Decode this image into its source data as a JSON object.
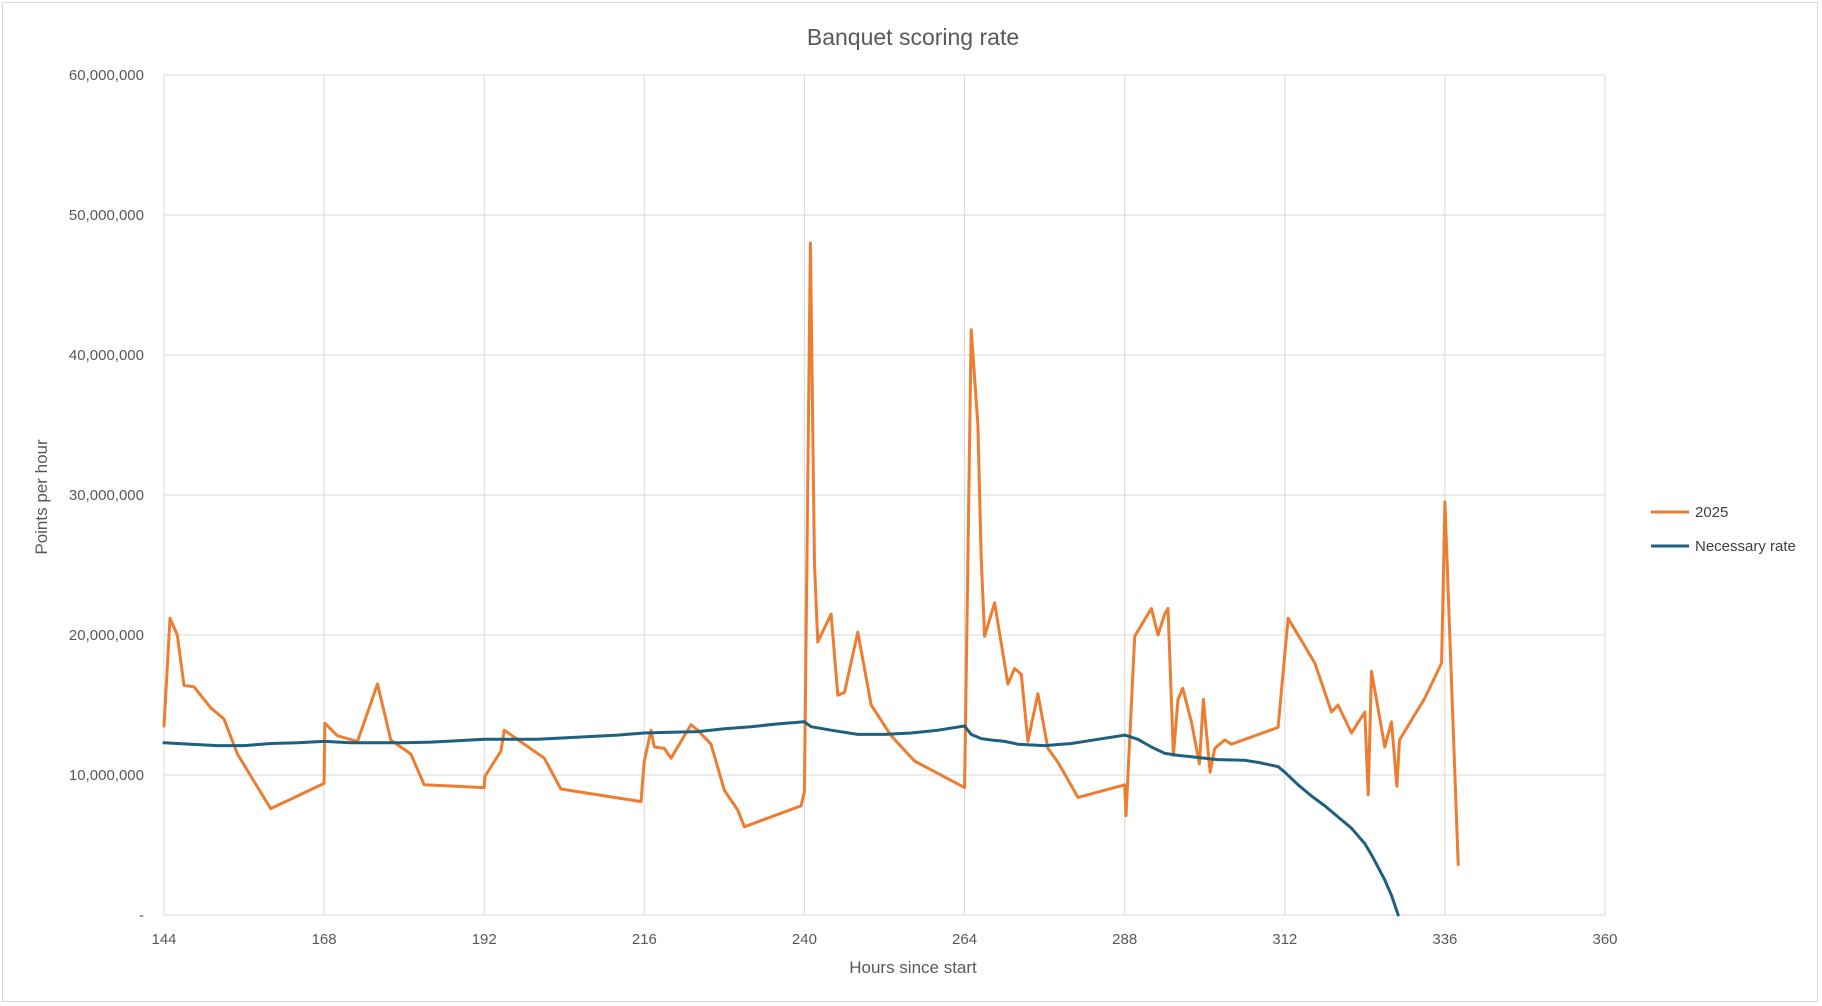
{
  "chart_data": {
    "type": "line",
    "title": "Banquet scoring rate",
    "xlabel": "Hours since start",
    "ylabel": "Points per hour",
    "xlim": [
      144,
      360
    ],
    "ylim": [
      0,
      60000000
    ],
    "x_ticks": [
      144,
      168,
      192,
      216,
      240,
      264,
      288,
      312,
      336,
      360
    ],
    "x_tick_labels": [
      "144",
      "168",
      "192",
      "216",
      "240",
      "264",
      "288",
      "312",
      "336",
      "360"
    ],
    "y_ticks": [
      0,
      10000000,
      20000000,
      30000000,
      40000000,
      50000000,
      60000000
    ],
    "y_tick_labels": [
      "-",
      "10,000,000",
      "20,000,000",
      "30,000,000",
      "40,000,000",
      "50,000,000",
      "60,000,000"
    ],
    "grid": true,
    "legend_position": "right",
    "series": [
      {
        "name": "2025",
        "color": "#ED7D31",
        "points": [
          [
            144.0,
            13500000
          ],
          [
            144.9,
            21200000
          ],
          [
            146.0,
            20000000
          ],
          [
            147.0,
            16400000
          ],
          [
            148.5,
            16300000
          ],
          [
            151.0,
            14800000
          ],
          [
            153.0,
            14000000
          ],
          [
            155.0,
            11500000
          ],
          [
            160.0,
            7600000
          ],
          [
            168.0,
            9400000
          ],
          [
            168.1,
            13700000
          ],
          [
            170.0,
            12800000
          ],
          [
            173.0,
            12400000
          ],
          [
            176.0,
            16500000
          ],
          [
            177.5,
            13500000
          ],
          [
            178.0,
            12500000
          ],
          [
            181.0,
            11500000
          ],
          [
            183.0,
            9300000
          ],
          [
            192.0,
            9100000
          ],
          [
            192.1,
            9900000
          ],
          [
            194.5,
            11700000
          ],
          [
            195.0,
            13200000
          ],
          [
            201.0,
            11200000
          ],
          [
            203.5,
            9000000
          ],
          [
            215.5,
            8100000
          ],
          [
            216.0,
            11000000
          ],
          [
            217.0,
            13200000
          ],
          [
            217.5,
            12000000
          ],
          [
            219.0,
            11900000
          ],
          [
            220.0,
            11200000
          ],
          [
            223.0,
            13600000
          ],
          [
            224.0,
            13200000
          ],
          [
            226.0,
            12200000
          ],
          [
            228.0,
            8900000
          ],
          [
            230.0,
            7500000
          ],
          [
            231.0,
            6300000
          ],
          [
            239.5,
            7800000
          ],
          [
            240.0,
            8800000
          ],
          [
            240.9,
            48000000
          ],
          [
            241.5,
            25000000
          ],
          [
            242.0,
            19500000
          ],
          [
            244.0,
            21500000
          ],
          [
            245.0,
            15700000
          ],
          [
            246.0,
            15900000
          ],
          [
            248.0,
            20200000
          ],
          [
            250.0,
            15000000
          ],
          [
            253.0,
            12800000
          ],
          [
            256.5,
            11000000
          ],
          [
            264.0,
            9100000
          ],
          [
            265.0,
            41800000
          ],
          [
            266.0,
            35000000
          ],
          [
            266.5,
            25500000
          ],
          [
            267.0,
            19900000
          ],
          [
            268.5,
            22300000
          ],
          [
            270.5,
            16500000
          ],
          [
            271.5,
            17600000
          ],
          [
            272.5,
            17200000
          ],
          [
            273.5,
            12400000
          ],
          [
            275.0,
            15800000
          ],
          [
            276.5,
            11900000
          ],
          [
            278.0,
            10900000
          ],
          [
            281.0,
            8400000
          ],
          [
            288.0,
            9300000
          ],
          [
            288.2,
            7100000
          ],
          [
            289.5,
            19900000
          ],
          [
            292.0,
            21900000
          ],
          [
            293.0,
            20000000
          ],
          [
            294.0,
            21500000
          ],
          [
            294.5,
            21900000
          ],
          [
            295.3,
            11400000
          ],
          [
            296.0,
            15400000
          ],
          [
            296.7,
            16200000
          ],
          [
            298.0,
            13800000
          ],
          [
            299.2,
            10800000
          ],
          [
            299.8,
            15400000
          ],
          [
            300.8,
            10200000
          ],
          [
            301.5,
            11900000
          ],
          [
            303.0,
            12500000
          ],
          [
            304.0,
            12200000
          ],
          [
            311.0,
            13400000
          ],
          [
            312.5,
            21200000
          ],
          [
            316.5,
            18000000
          ],
          [
            319.0,
            14500000
          ],
          [
            320.0,
            15000000
          ],
          [
            322.0,
            13000000
          ],
          [
            324.0,
            14500000
          ],
          [
            324.5,
            8600000
          ],
          [
            325.0,
            17400000
          ],
          [
            327.0,
            12000000
          ],
          [
            328.0,
            13800000
          ],
          [
            328.8,
            9200000
          ],
          [
            329.2,
            12500000
          ],
          [
            333.0,
            15500000
          ],
          [
            335.5,
            18000000
          ],
          [
            336.0,
            29500000
          ],
          [
            338.0,
            3600000
          ]
        ]
      },
      {
        "name": "Necessary rate",
        "color": "#1F5F7F",
        "points": [
          [
            144.0,
            12300000
          ],
          [
            148.0,
            12200000
          ],
          [
            152.0,
            12100000
          ],
          [
            156.0,
            12100000
          ],
          [
            160.0,
            12250000
          ],
          [
            164.0,
            12300000
          ],
          [
            168.0,
            12400000
          ],
          [
            172.0,
            12300000
          ],
          [
            176.0,
            12300000
          ],
          [
            180.0,
            12300000
          ],
          [
            184.0,
            12350000
          ],
          [
            188.0,
            12450000
          ],
          [
            192.0,
            12550000
          ],
          [
            196.0,
            12550000
          ],
          [
            200.0,
            12550000
          ],
          [
            204.0,
            12650000
          ],
          [
            208.0,
            12750000
          ],
          [
            212.0,
            12850000
          ],
          [
            216.0,
            13000000
          ],
          [
            220.0,
            13050000
          ],
          [
            224.0,
            13100000
          ],
          [
            228.0,
            13300000
          ],
          [
            232.0,
            13450000
          ],
          [
            236.0,
            13650000
          ],
          [
            240.0,
            13800000
          ],
          [
            241.0,
            13450000
          ],
          [
            244.0,
            13200000
          ],
          [
            248.0,
            12900000
          ],
          [
            252.0,
            12900000
          ],
          [
            256.0,
            13000000
          ],
          [
            260.0,
            13200000
          ],
          [
            264.0,
            13500000
          ],
          [
            265.0,
            12900000
          ],
          [
            266.5,
            12600000
          ],
          [
            268.0,
            12500000
          ],
          [
            270.0,
            12400000
          ],
          [
            272.0,
            12200000
          ],
          [
            276.0,
            12100000
          ],
          [
            280.0,
            12250000
          ],
          [
            284.0,
            12550000
          ],
          [
            288.0,
            12850000
          ],
          [
            290.0,
            12550000
          ],
          [
            292.0,
            12000000
          ],
          [
            294.0,
            11550000
          ],
          [
            296.0,
            11400000
          ],
          [
            298.0,
            11300000
          ],
          [
            300.0,
            11200000
          ],
          [
            302.0,
            11100000
          ],
          [
            306.0,
            11050000
          ],
          [
            308.0,
            10900000
          ],
          [
            310.0,
            10700000
          ],
          [
            311.0,
            10600000
          ],
          [
            312.0,
            10200000
          ],
          [
            314.0,
            9300000
          ],
          [
            316.0,
            8500000
          ],
          [
            318.0,
            7800000
          ],
          [
            320.0,
            7000000
          ],
          [
            322.0,
            6200000
          ],
          [
            324.0,
            5100000
          ],
          [
            325.0,
            4300000
          ],
          [
            326.0,
            3400000
          ],
          [
            327.0,
            2500000
          ],
          [
            328.0,
            1400000
          ],
          [
            329.0,
            0
          ]
        ]
      }
    ]
  }
}
